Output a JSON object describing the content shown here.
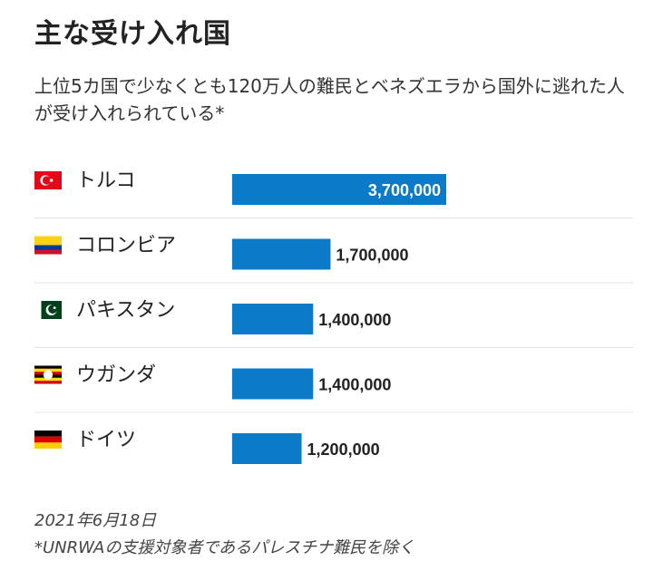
{
  "title": "主な受け入れ国",
  "subtitle": "上位5カ国で少なくとも120万人の難民とベネズエラから国外に逃れた人が受け入れられている*",
  "footer": {
    "date": "2021年6月18日",
    "note": "*UNRWAの支援対象者であるパレスチナ難民を除く"
  },
  "colors": {
    "bar": "#0b7bc9",
    "divider": "#e3e3e3",
    "label": "#222222"
  },
  "chart_data": {
    "type": "bar",
    "orientation": "horizontal",
    "categories": [
      "トルコ",
      "コロンビア",
      "パキスタン",
      "ウガンダ",
      "ドイツ"
    ],
    "values": [
      3700000,
      1700000,
      1400000,
      1400000,
      1200000
    ],
    "value_labels": [
      "3,700,000",
      "1,700,000",
      "1,400,000",
      "1,400,000",
      "1,200,000"
    ],
    "flags": [
      "turkey-flag",
      "colombia-flag",
      "pakistan-flag",
      "uganda-flag",
      "germany-flag"
    ],
    "xlim": [
      0,
      3700000
    ],
    "grid": false
  }
}
